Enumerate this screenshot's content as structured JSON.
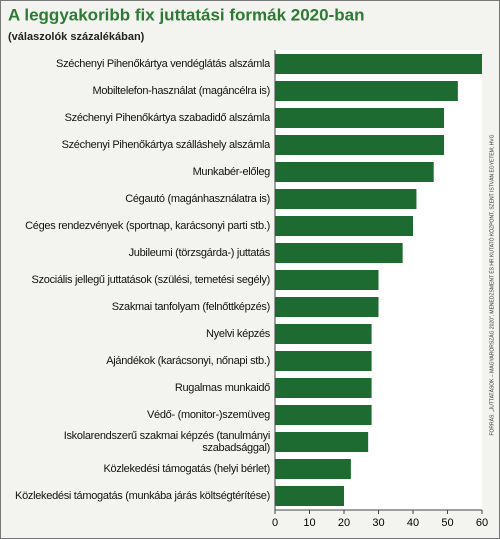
{
  "chart_data": {
    "type": "bar",
    "orientation": "horizontal",
    "title": "A leggyakoribb fix juttatási formák 2020-ban",
    "subtitle": "(válaszolók százalékában)",
    "source": "FORRÁS: „JUTTATÁSOK – MAGYARORSZÁG 2020”, MENEDZSMENT ÉS HR KUTATÓ KÖZPONT, SZENT ISTVÁN EGYETEM; HVG",
    "categories": [
      "Széchenyi Pihenőkártya vendéglátás alszámla",
      "Mobiltelefon-használat (magáncélra is)",
      "Széchenyi Pihenőkártya szabadidő alszámla",
      "Széchenyi Pihenőkártya szálláshely alszámla",
      "Munkabér-előleg",
      "Cégautó (magánhasználatra is)",
      "Céges rendezvények (sportnap, karácsonyi parti stb.)",
      "Jubileumi (törzsgárda-) juttatás",
      "Szociális jellegű juttatások (szülési, temetési segély)",
      "Szakmai tanfolyam (felnőttképzés)",
      "Nyelvi képzés",
      "Ajándékok (karácsonyi, nőnapi stb.)",
      "Rugalmas munkaidő",
      "Védő- (monitor-)szemüveg",
      "Iskolarendszerű szakmai képzés (tanulmányi szabadsággal)",
      "Közlekedési támogatás (helyi bérlet)",
      "Közlekedési támogatás (munkába járás költségtérítése)"
    ],
    "values": [
      60,
      53,
      49,
      49,
      46,
      41,
      40,
      37,
      30,
      30,
      28,
      28,
      28,
      28,
      27,
      22,
      20
    ],
    "color": "#1d6b30",
    "xlim": [
      0,
      60
    ],
    "xticks": [
      0,
      10,
      20,
      30,
      40,
      50,
      60
    ],
    "grid": false
  }
}
